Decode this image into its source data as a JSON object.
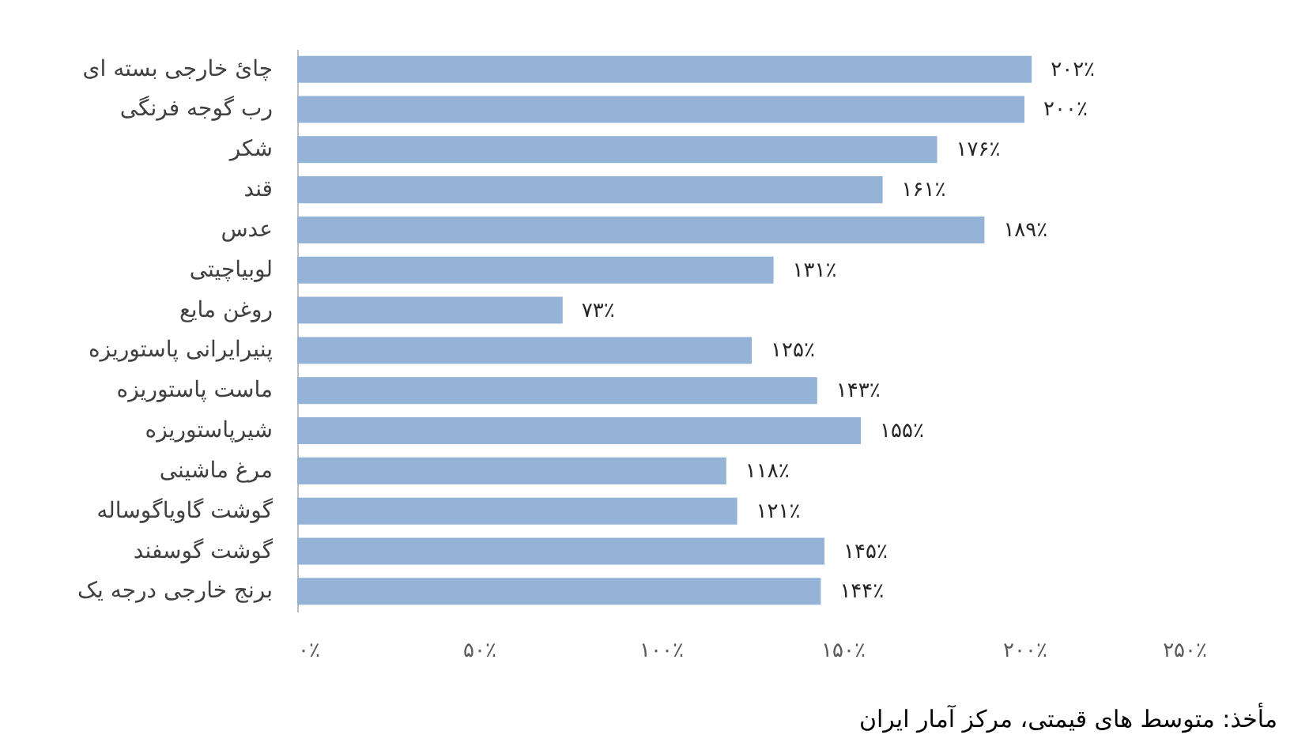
{
  "chart_data": {
    "type": "bar",
    "orientation": "horizontal",
    "categories": [
      "چائ خارجی بسته ای",
      "رب گوجه فرنگی",
      "شکر",
      "قند",
      "عدس",
      "لوبیاچیتی",
      "روغن مایع",
      "پنیرایرانی پاستوریزه",
      "ماست پاستوریزه",
      "شیرپاستوریزه",
      "مرغ ماشینی",
      "گوشت گاویاگوساله",
      "گوشت گوسفند",
      "برنج خارجی درجه یک"
    ],
    "values": [
      202,
      200,
      176,
      161,
      189,
      131,
      73,
      125,
      143,
      155,
      118,
      121,
      145,
      144
    ],
    "value_labels": [
      "۲۰۲٪",
      "۲۰۰٪",
      "۱۷۶٪",
      "۱۶۱٪",
      "۱۸۹٪",
      "۱۳۱٪",
      "۷۳٪",
      "۱۲۵٪",
      "۱۴۳٪",
      "۱۵۵٪",
      "۱۱۸٪",
      "۱۲۱٪",
      "۱۴۵٪",
      "۱۴۴٪"
    ],
    "color": "#95b3d7",
    "xlim": [
      0,
      250
    ],
    "xticks": [
      {
        "value": 0,
        "label": "۰٪"
      },
      {
        "value": 50,
        "label": "۵۰٪"
      },
      {
        "value": 100,
        "label": "۱۰۰٪"
      },
      {
        "value": 150,
        "label": "۱۵۰٪"
      },
      {
        "value": 200,
        "label": "۲۰۰٪"
      },
      {
        "value": 250,
        "label": "۲۵۰٪"
      }
    ],
    "grid": false,
    "annotations": [
      "مأخذ: متوسط های قیمتی، مرکز آمار ایران"
    ]
  }
}
